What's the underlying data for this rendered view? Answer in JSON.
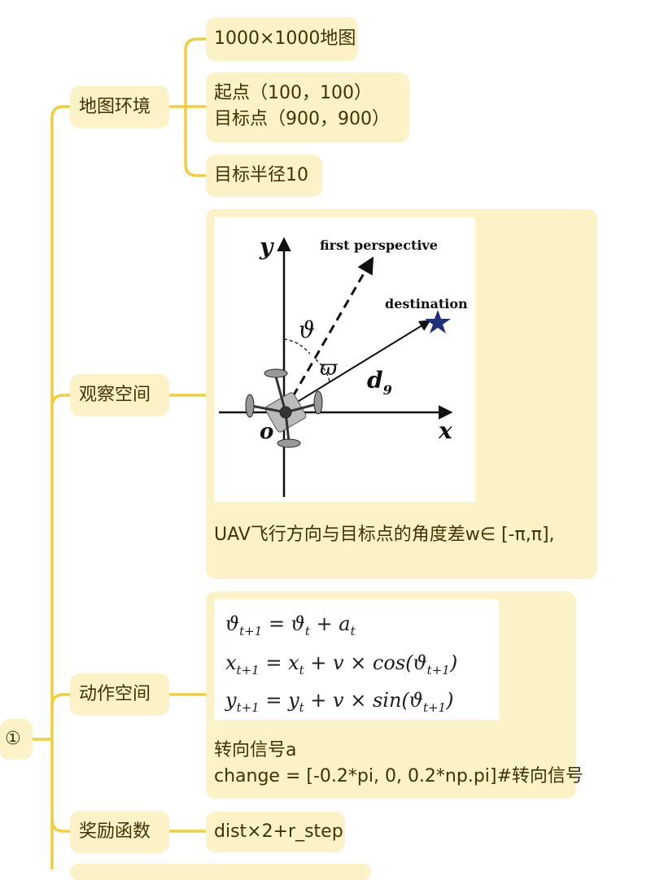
{
  "root": {
    "label": "①"
  },
  "branches": [
    {
      "label": "地图环境",
      "children": [
        {
          "lines": [
            "1000×1000地图"
          ]
        },
        {
          "lines": [
            "起点（100，100）",
            "目标点（900，900）"
          ]
        },
        {
          "lines": [
            "目标半径10"
          ]
        }
      ]
    },
    {
      "label": "观察空间",
      "figure": {
        "axis_y": "y",
        "axis_x": "x",
        "origin": "o",
        "first_perspective": "first perspective",
        "destination": "destination",
        "theta": "ϑ",
        "omega": "ϖ",
        "distance": "d",
        "distance_sub": "9"
      },
      "caption": "UAV飞行方向与目标点的角度差w∈ [-π,π],"
    },
    {
      "label": "动作空间",
      "equations": [
        {
          "lhs": "ϑ",
          "lhs_sub": "t+1",
          "rhs": "= ϑ",
          "rhs_sub": "t",
          "tail": " + a",
          "tail_sub": "t"
        },
        {
          "lhs": "x",
          "lhs_sub": "t+1",
          "rhs": "= x",
          "rhs_sub": "t",
          "tail": " + v × cos(ϑ",
          "tail_sub": "t+1",
          "end": ")"
        },
        {
          "lhs": "y",
          "lhs_sub": "t+1",
          "rhs": "= y",
          "rhs_sub": "t",
          "tail": " + v × sin(ϑ",
          "tail_sub": "t+1",
          "end": ")"
        }
      ],
      "text_lines": [
        "转向信号a",
        "change = [-0.2*pi, 0, 0.2*np.pi]#转向信号"
      ]
    },
    {
      "label": "奖励函数",
      "children": [
        {
          "lines": [
            "dist×2+r_step"
          ]
        }
      ]
    }
  ],
  "colors": {
    "connector": "#f0cf3a",
    "node_bg": "#fbf2c8",
    "star": "#1f2f7a"
  }
}
